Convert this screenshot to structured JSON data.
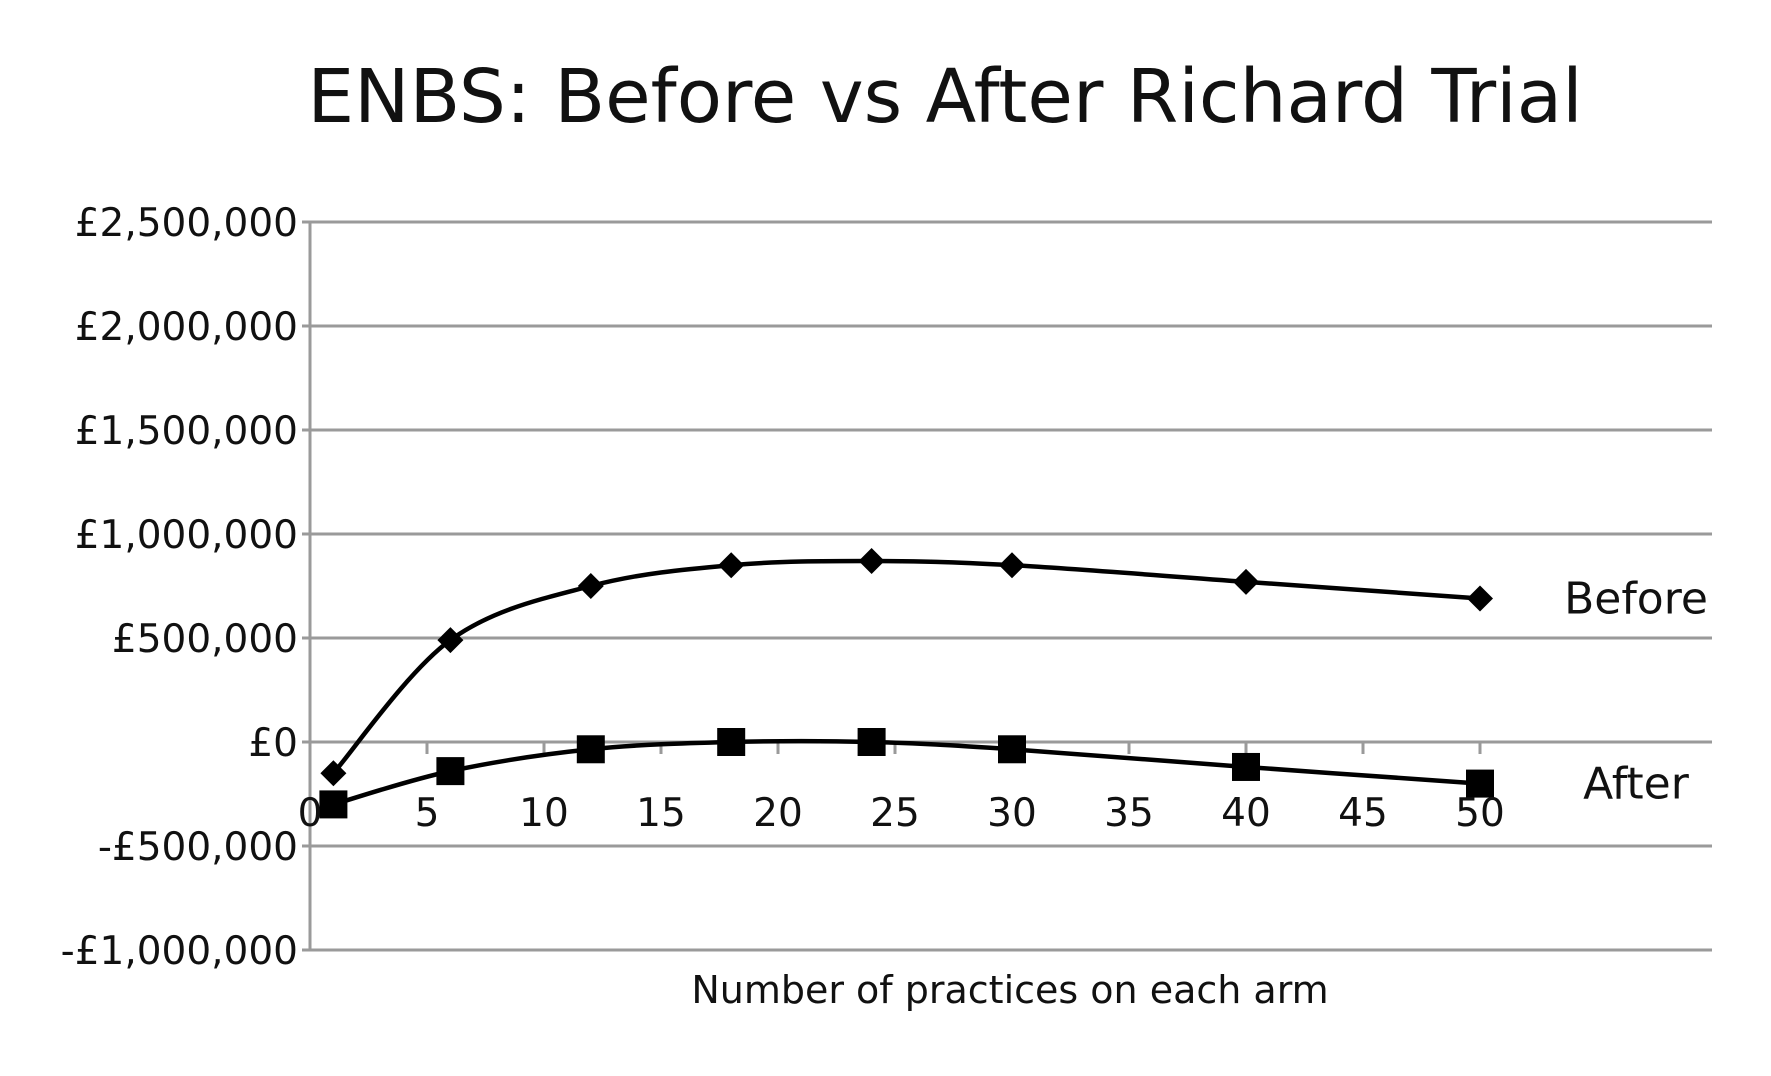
{
  "chart_data": {
    "type": "line",
    "title": "ENBS: Before vs After Richard Trial",
    "xlabel": "Number of practices on each arm",
    "ylabel": "",
    "xlim": [
      0,
      50
    ],
    "ylim": [
      -1000000,
      2500000
    ],
    "x_ticks": [
      0,
      5,
      10,
      15,
      20,
      25,
      30,
      35,
      40,
      45,
      50
    ],
    "x_tick_labels": [
      "0",
      "5",
      "10",
      "15",
      "20",
      "25",
      "30",
      "35",
      "40",
      "45",
      "50"
    ],
    "y_ticks": [
      2500000,
      2000000,
      1500000,
      1000000,
      500000,
      0,
      -500000,
      -1000000
    ],
    "y_tick_labels": [
      "£2,500,000",
      "£2,000,000",
      "£1,500,000",
      "£1,000,000",
      "£500,000",
      "£0",
      "-£500,000",
      "-£1,000,000"
    ],
    "grid": true,
    "legend": "inline labels at right end of each series",
    "series": [
      {
        "name": "Before",
        "marker": "diamond",
        "color": "#000000",
        "x": [
          1,
          6,
          12,
          18,
          24,
          30,
          40,
          50
        ],
        "y": [
          -150000,
          490000,
          750000,
          850000,
          870000,
          850000,
          770000,
          690000
        ]
      },
      {
        "name": "After",
        "marker": "square",
        "color": "#000000",
        "x": [
          1,
          6,
          12,
          18,
          24,
          30,
          40,
          50
        ],
        "y": [
          -300000,
          -140000,
          -35000,
          0,
          0,
          -35000,
          -120000,
          -200000
        ]
      }
    ]
  }
}
